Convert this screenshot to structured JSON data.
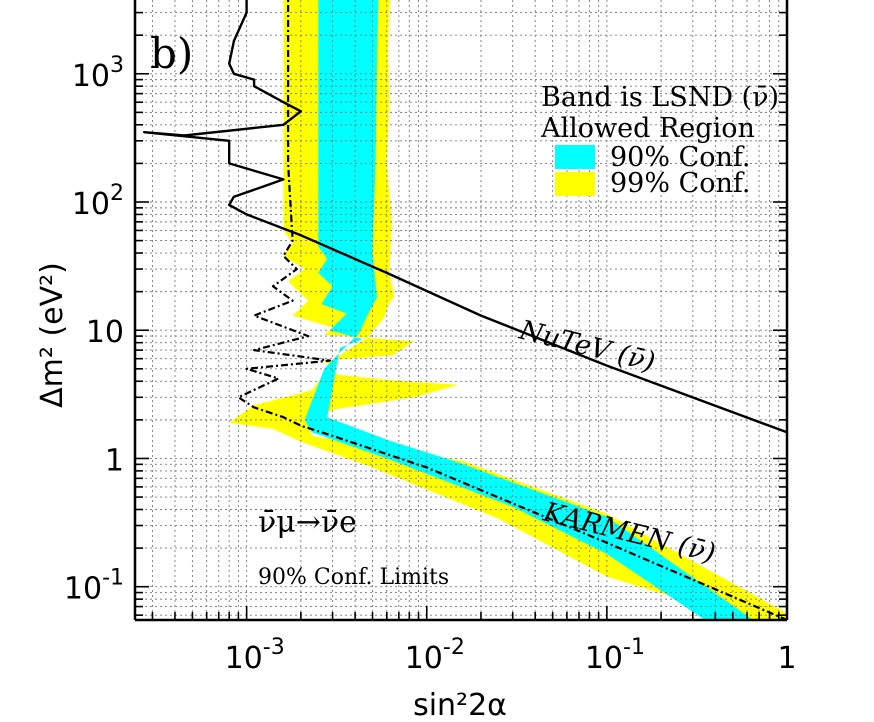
{
  "chart_data": {
    "type": "area",
    "panel_label": "b)",
    "xlabel": "sin²2α",
    "ylabel": "Δm² (eV²)",
    "x_scale": "log",
    "y_scale": "log",
    "xlim": [
      0.00024,
      1
    ],
    "ylim": [
      0.055,
      4500
    ],
    "grid": true,
    "x_ticks": [
      {
        "value": 0.001,
        "base": "10",
        "exp": "-3"
      },
      {
        "value": 0.01,
        "base": "10",
        "exp": "-2"
      },
      {
        "value": 0.1,
        "base": "10",
        "exp": "-1"
      },
      {
        "value": 1,
        "base": "1",
        "exp": ""
      }
    ],
    "y_ticks": [
      {
        "value": 0.1,
        "base": "10",
        "exp": "-1"
      },
      {
        "value": 1,
        "base": "1",
        "exp": ""
      },
      {
        "value": 10,
        "base": "10",
        "exp": ""
      },
      {
        "value": 100,
        "base": "10",
        "exp": "2"
      },
      {
        "value": 1000,
        "base": "10",
        "exp": "3"
      }
    ],
    "legend": {
      "placement": "top-right",
      "title_line1": "Band is LSND (ν̄)",
      "title_line2": "Allowed Region",
      "entries": [
        {
          "label": "90% Conf.",
          "color": "#00ffff"
        },
        {
          "label": "99% Conf.",
          "color": "#ffff00"
        }
      ]
    },
    "annotations": {
      "nutev": "NuTeV (ν̄)",
      "karmen": "KARMEN (ν̄)",
      "channel": "ν̄μ→ν̄e",
      "limits": "90% Conf. Limits"
    },
    "series": [
      {
        "name": "99% Conf.",
        "kind": "region",
        "color": "#ffff00",
        "x": [
          0.0016,
          0.0016,
          0.0018,
          0.0016,
          0.0021,
          0.0017,
          0.0022,
          0.0018,
          0.003,
          0.0027,
          0.0085,
          0.0065,
          0.0027,
          0.0032,
          0.006,
          0.015,
          0.0085,
          0.003,
          0.0022,
          0.0023,
          0.016,
          0.1,
          1.0,
          1.0,
          0.6,
          0.1,
          0.025,
          0.005,
          0.002,
          0.0014,
          0.0008,
          0.0011,
          0.0023,
          0.0032,
          0.0047,
          0.0058,
          0.0061,
          0.0066,
          0.0062,
          0.0064,
          0.006,
          0.0062,
          0.0061,
          0.0062,
          0.0063
        ],
        "y": [
          4500,
          60,
          48,
          38,
          30,
          24,
          17,
          13,
          10.5,
          9.2,
          8.2,
          6.4,
          5.8,
          4.5,
          4.1,
          3.75,
          3.0,
          2.4,
          1.9,
          1.5,
          0.95,
          0.37,
          0.062,
          0.055,
          0.055,
          0.12,
          0.34,
          0.85,
          1.35,
          1.7,
          1.9,
          2.6,
          3.4,
          6.2,
          8.8,
          12.5,
          15.5,
          18.5,
          28,
          70,
          200,
          600,
          1500,
          3000,
          4500
        ]
      },
      {
        "name": "90% Conf.",
        "kind": "region",
        "color": "#00ffff",
        "x": [
          0.0025,
          0.0025,
          0.0028,
          0.0025,
          0.003,
          0.0026,
          0.0036,
          0.0029,
          0.0044,
          0.0033,
          0.0028,
          0.006,
          0.015,
          0.1,
          0.65,
          0.35,
          0.1,
          0.03,
          0.006,
          0.0023,
          0.0021,
          0.0027,
          0.0042,
          0.0048,
          0.0053,
          0.005,
          0.0052,
          0.0053,
          0.0054
        ],
        "y": [
          4500,
          45,
          36,
          28,
          22,
          16,
          13.5,
          10,
          8.5,
          7.3,
          2.1,
          1.4,
          0.93,
          0.35,
          0.055,
          0.055,
          0.18,
          0.42,
          1.0,
          1.6,
          2.0,
          5.0,
          9.5,
          14,
          18,
          40,
          200,
          1500,
          4500
        ]
      },
      {
        "name": "NuTeV (ν̄)",
        "kind": "limit",
        "color": "#000000",
        "x": [
          0.001,
          0.001,
          0.00085,
          0.0008,
          0.00085,
          0.0011,
          0.0011,
          0.0016,
          0.002,
          0.0016,
          0.00045,
          0.00027,
          0.0008,
          0.0008,
          0.0016,
          0.0012,
          0.00085,
          0.0008,
          0.001,
          0.002,
          0.006,
          0.02,
          0.1,
          1.0
        ],
        "y": [
          4500,
          3000,
          1800,
          1200,
          1000,
          900,
          800,
          600,
          510,
          400,
          330,
          350,
          300,
          200,
          150,
          130,
          110,
          95,
          80,
          55,
          28,
          13,
          5.3,
          1.6
        ]
      },
      {
        "name": "KARMEN (ν̄)",
        "kind": "limit",
        "color": "#000000",
        "dash": "dashdot",
        "x": [
          0.0017,
          0.0017,
          0.0018,
          0.0016,
          0.0019,
          0.0014,
          0.0018,
          0.0011,
          0.0022,
          0.0011,
          0.0029,
          0.001,
          0.0015,
          0.0009,
          0.0011,
          0.0016,
          0.002,
          0.003,
          0.01,
          0.1,
          1.0
        ],
        "y": [
          4500,
          200,
          50,
          38,
          30,
          22,
          17,
          13,
          9,
          7,
          5.8,
          5.0,
          4.2,
          3.0,
          2.5,
          2.1,
          1.8,
          1.5,
          0.85,
          0.22,
          0.055
        ]
      }
    ]
  }
}
